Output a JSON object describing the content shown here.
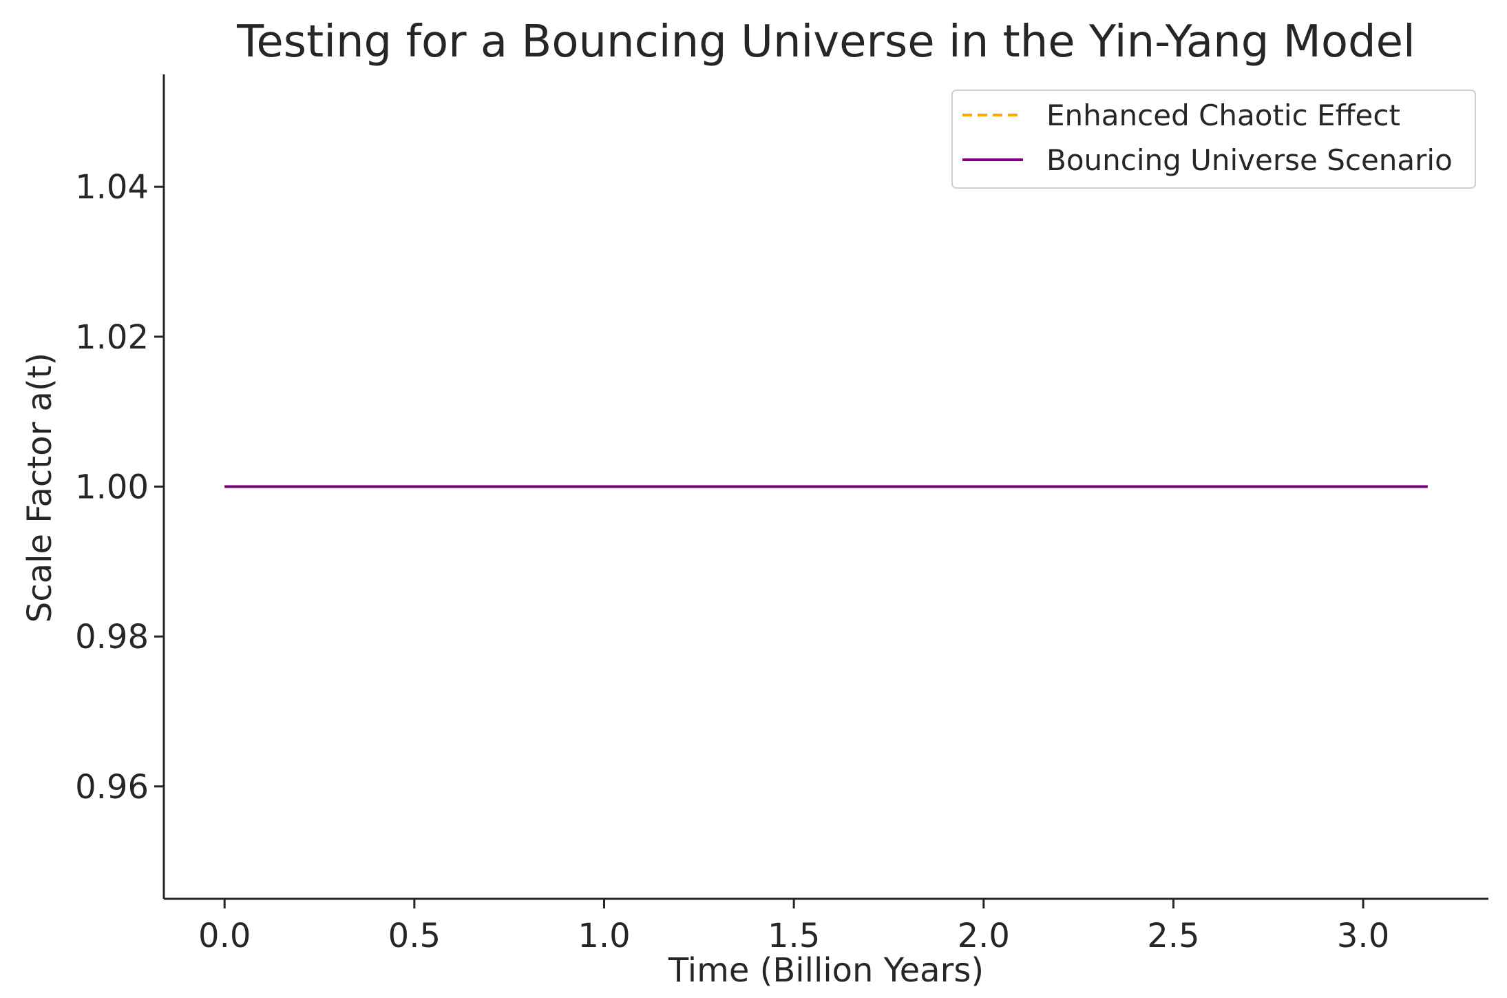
{
  "chart_data": {
    "type": "line",
    "title": "Testing for a Bouncing Universe in the Yin-Yang Model",
    "xlabel": "Time (Billion Years)",
    "ylabel": "Scale Factor a(t)",
    "xlim": [
      -0.16,
      3.33
    ],
    "ylim": [
      0.945,
      1.055
    ],
    "xticks": [
      0.0,
      0.5,
      1.0,
      1.5,
      2.0,
      2.5,
      3.0
    ],
    "xtick_labels": [
      "0.0",
      "0.5",
      "1.0",
      "1.5",
      "2.0",
      "2.5",
      "3.0"
    ],
    "yticks": [
      0.96,
      0.98,
      1.0,
      1.02,
      1.04
    ],
    "ytick_labels": [
      "0.96",
      "0.98",
      "1.00",
      "1.02",
      "1.04"
    ],
    "grid": false,
    "legend_position": "top-right",
    "series": [
      {
        "name": "Enhanced Chaotic Effect",
        "color": "#FFA500",
        "style": "dashed",
        "x": [
          0.0,
          3.17
        ],
        "y": [
          1.0,
          1.0
        ]
      },
      {
        "name": "Bouncing Universe Scenario",
        "color": "#800080",
        "style": "solid",
        "x": [
          0.0,
          3.17
        ],
        "y": [
          1.0,
          1.0
        ]
      }
    ]
  }
}
